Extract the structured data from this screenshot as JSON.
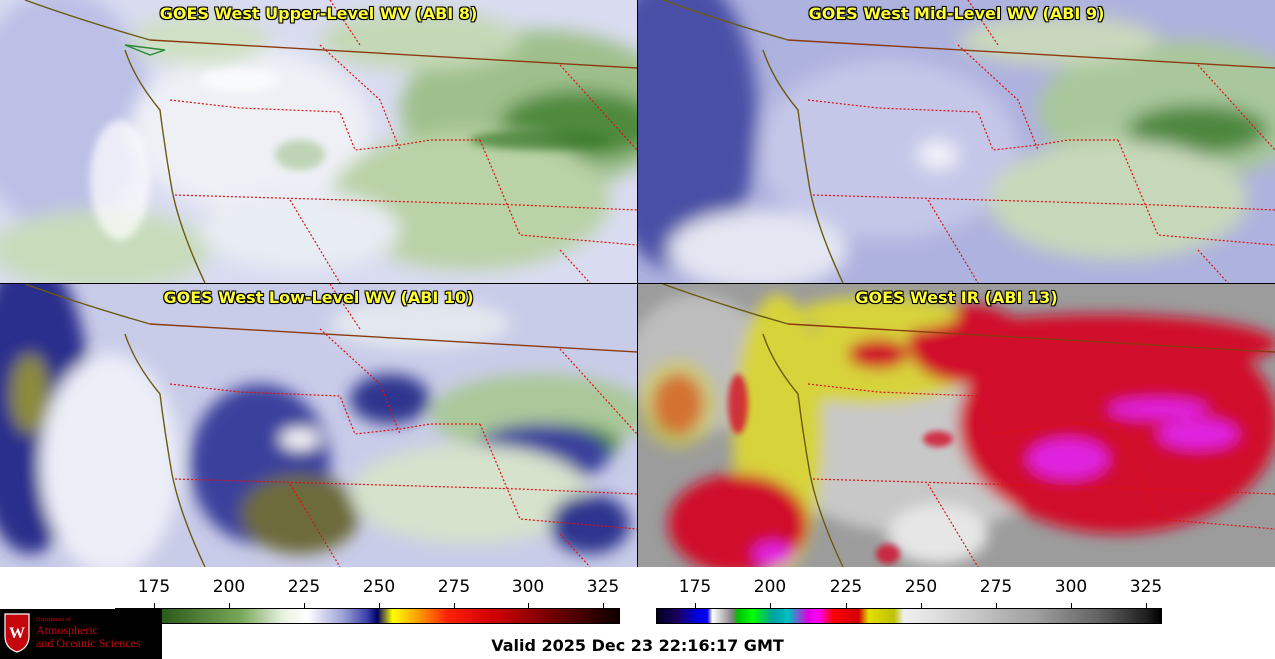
{
  "panels": [
    {
      "title": "GOES West Upper-Level WV (ABI 8)"
    },
    {
      "title": "GOES West Mid-Level WV (ABI 9)"
    },
    {
      "title": "GOES West Low-Level WV (ABI 10)"
    },
    {
      "title": "GOES West IR (ABI 13)"
    }
  ],
  "colorbar_left": {
    "ticks": [
      "175",
      "200",
      "225",
      "250",
      "275",
      "300",
      "325"
    ],
    "colors": [
      "#2e5f1e",
      "#7aa85a",
      "#ffffff",
      "#3333aa",
      "#000060",
      "#ffff00",
      "#ff8000",
      "#ee0000",
      "#900000",
      "#200000"
    ]
  },
  "colorbar_right": {
    "ticks": [
      "175",
      "200",
      "225",
      "250",
      "275",
      "300",
      "325"
    ]
  },
  "logo": {
    "dept": "Department of",
    "name_line1": "Atmospheric",
    "name_line2": "and Oceanic Sciences"
  },
  "valid_text": "Valid 2025 Dec 23 22:16:17 GMT"
}
